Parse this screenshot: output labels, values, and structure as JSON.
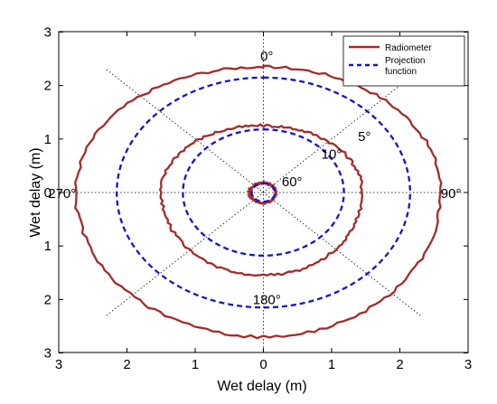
{
  "chart_data": {
    "type": "line",
    "xlabel": "Wet delay (m)",
    "ylabel": "Wet delay (m)",
    "xlim": [
      -3,
      3
    ],
    "ylim": [
      -3,
      3
    ],
    "x_tick_labels": [
      "3",
      "2",
      "1",
      "0",
      "1",
      "2",
      "3"
    ],
    "y_tick_labels": [
      "3",
      "2",
      "1",
      "0",
      "1",
      "2",
      "3"
    ],
    "grid": "dotted polar guides",
    "legend_position": "top-right",
    "colors": {
      "radiometer": "#a52a2a",
      "projection": "#1515c8",
      "guides": "#000000"
    },
    "annotations": [
      {
        "text": "0°",
        "x": 0.05,
        "y": 2.55
      },
      {
        "text": "5°",
        "x": 1.48,
        "y": 1.05
      },
      {
        "text": "10°",
        "x": 1.0,
        "y": 0.72
      },
      {
        "text": "60°",
        "x": 0.42,
        "y": 0.2
      },
      {
        "text": "90°",
        "x": 2.75,
        "y": -0.02
      },
      {
        "text": "180°",
        "x": 0.05,
        "y": -2.0
      },
      {
        "text": "270°",
        "x": -2.95,
        "y": -0.02
      }
    ],
    "series": [
      {
        "name": "Radiometer",
        "style": "solid",
        "rings": [
          {
            "elevation": "5°",
            "approx_radius_m": [
              2.35,
              2.6,
              2.7,
              2.75
            ]
          },
          {
            "elevation": "10°",
            "approx_radius_m": [
              1.25,
              1.45,
              1.55,
              1.5
            ]
          },
          {
            "elevation": "60°",
            "approx_radius_m": [
              0.18,
              0.18,
              0.2,
              0.2
            ]
          }
        ]
      },
      {
        "name": "Projection function",
        "style": "dashed",
        "rings": [
          {
            "elevation": "5°",
            "radius_m": 2.15
          },
          {
            "elevation": "10°",
            "radius_m": 1.18
          },
          {
            "elevation": "60°",
            "radius_m": 0.17
          }
        ]
      }
    ]
  },
  "legend": {
    "radiometer_label": "Radiometer",
    "projection_label_line1": "Projection",
    "projection_label_line2": "function"
  }
}
